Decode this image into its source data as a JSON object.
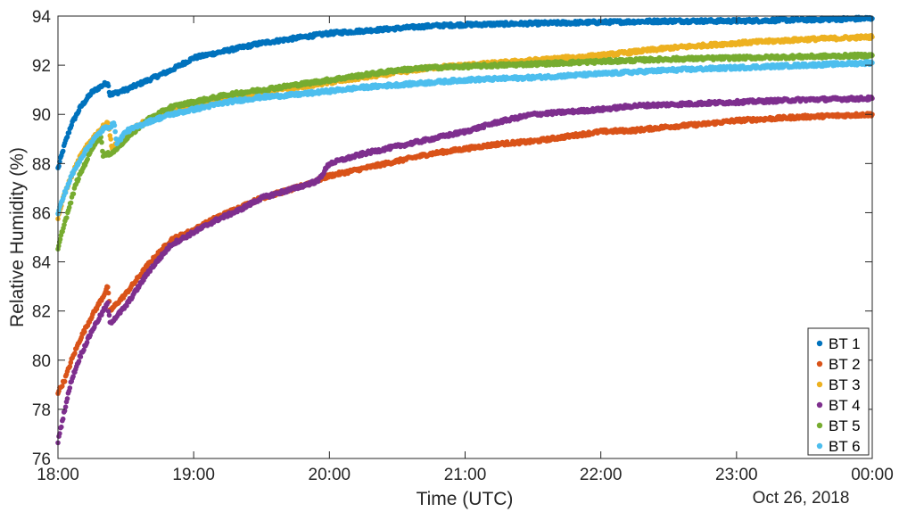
{
  "chart_data": {
    "type": "scatter",
    "xlabel": "Time (UTC)",
    "ylabel": "Relative Humidity (%)",
    "date_label": "Oct 26, 2018",
    "x_tick_labels": [
      "18:00",
      "19:00",
      "20:00",
      "21:00",
      "22:00",
      "23:00",
      "00:00"
    ],
    "y_tick_labels": [
      "76",
      "78",
      "80",
      "82",
      "84",
      "86",
      "88",
      "90",
      "92",
      "94"
    ],
    "xlim": [
      "18:00",
      "00:00"
    ],
    "ylim": [
      76,
      94
    ],
    "grid": false,
    "legend_position": "bottom-right",
    "series": [
      {
        "name": "BT 1",
        "color": "#0072BD",
        "points": [
          [
            "18:00",
            87.8
          ],
          [
            "18:03",
            88.8
          ],
          [
            "18:06",
            89.6
          ],
          [
            "18:10",
            90.3
          ],
          [
            "18:15",
            90.9
          ],
          [
            "18:20",
            91.2
          ],
          [
            "18:22",
            91.3
          ],
          [
            "18:23",
            90.8
          ],
          [
            "18:30",
            91.0
          ],
          [
            "18:40",
            91.4
          ],
          [
            "18:50",
            91.8
          ],
          [
            "19:00",
            92.3
          ],
          [
            "19:15",
            92.6
          ],
          [
            "19:30",
            92.9
          ],
          [
            "19:45",
            93.1
          ],
          [
            "20:00",
            93.3
          ],
          [
            "20:15",
            93.4
          ],
          [
            "20:30",
            93.5
          ],
          [
            "20:45",
            93.6
          ],
          [
            "21:00",
            93.65
          ],
          [
            "21:30",
            93.7
          ],
          [
            "22:00",
            93.75
          ],
          [
            "22:30",
            93.8
          ],
          [
            "23:00",
            93.8
          ],
          [
            "23:30",
            93.85
          ],
          [
            "00:00",
            93.9
          ]
        ]
      },
      {
        "name": "BT 2",
        "color": "#D95319",
        "points": [
          [
            "18:00",
            78.7
          ],
          [
            "18:03",
            79.2
          ],
          [
            "18:06",
            80.0
          ],
          [
            "18:10",
            80.9
          ],
          [
            "18:15",
            81.8
          ],
          [
            "18:20",
            82.6
          ],
          [
            "18:22",
            83.0
          ],
          [
            "18:23",
            82.0
          ],
          [
            "18:30",
            82.7
          ],
          [
            "18:40",
            83.9
          ],
          [
            "18:50",
            84.9
          ],
          [
            "19:00",
            85.3
          ],
          [
            "19:10",
            85.8
          ],
          [
            "19:20",
            86.2
          ],
          [
            "19:30",
            86.6
          ],
          [
            "19:45",
            87.0
          ],
          [
            "20:00",
            87.5
          ],
          [
            "20:15",
            87.8
          ],
          [
            "20:30",
            88.1
          ],
          [
            "20:45",
            88.4
          ],
          [
            "21:00",
            88.6
          ],
          [
            "21:15",
            88.8
          ],
          [
            "21:30",
            88.9
          ],
          [
            "21:45",
            89.1
          ],
          [
            "22:00",
            89.3
          ],
          [
            "22:15",
            89.35
          ],
          [
            "22:30",
            89.5
          ],
          [
            "22:45",
            89.6
          ],
          [
            "23:00",
            89.75
          ],
          [
            "23:30",
            89.9
          ],
          [
            "00:00",
            90.0
          ]
        ]
      },
      {
        "name": "BT 3",
        "color": "#EDB120",
        "points": [
          [
            "18:00",
            85.8
          ],
          [
            "18:03",
            86.8
          ],
          [
            "18:06",
            87.5
          ],
          [
            "18:10",
            88.3
          ],
          [
            "18:15",
            89.0
          ],
          [
            "18:20",
            89.5
          ],
          [
            "18:22",
            89.7
          ],
          [
            "18:24",
            88.6
          ],
          [
            "18:30",
            89.2
          ],
          [
            "18:40",
            89.8
          ],
          [
            "18:50",
            90.1
          ],
          [
            "19:00",
            90.3
          ],
          [
            "19:15",
            90.6
          ],
          [
            "19:30",
            90.9
          ],
          [
            "19:45",
            91.1
          ],
          [
            "20:00",
            91.3
          ],
          [
            "20:15",
            91.5
          ],
          [
            "20:30",
            91.7
          ],
          [
            "20:45",
            91.9
          ],
          [
            "21:00",
            92.0
          ],
          [
            "21:30",
            92.2
          ],
          [
            "22:00",
            92.4
          ],
          [
            "22:30",
            92.7
          ],
          [
            "23:00",
            92.9
          ],
          [
            "23:30",
            93.05
          ],
          [
            "00:00",
            93.15
          ]
        ]
      },
      {
        "name": "BT 4",
        "color": "#7E2F8E",
        "points": [
          [
            "18:00",
            76.7
          ],
          [
            "18:03",
            78.0
          ],
          [
            "18:06",
            79.2
          ],
          [
            "18:10",
            80.2
          ],
          [
            "18:15",
            81.2
          ],
          [
            "18:20",
            82.0
          ],
          [
            "18:22",
            82.3
          ],
          [
            "18:23",
            81.5
          ],
          [
            "18:30",
            82.2
          ],
          [
            "18:40",
            83.6
          ],
          [
            "18:50",
            84.7
          ],
          [
            "19:00",
            85.2
          ],
          [
            "19:10",
            85.7
          ],
          [
            "19:20",
            86.1
          ],
          [
            "19:30",
            86.6
          ],
          [
            "19:45",
            87.0
          ],
          [
            "19:55",
            87.3
          ],
          [
            "20:00",
            88.0
          ],
          [
            "20:15",
            88.4
          ],
          [
            "20:30",
            88.7
          ],
          [
            "20:45",
            89.0
          ],
          [
            "21:00",
            89.3
          ],
          [
            "21:15",
            89.7
          ],
          [
            "21:30",
            90.0
          ],
          [
            "21:45",
            90.1
          ],
          [
            "22:00",
            90.2
          ],
          [
            "22:15",
            90.35
          ],
          [
            "22:30",
            90.4
          ],
          [
            "22:45",
            90.45
          ],
          [
            "23:00",
            90.5
          ],
          [
            "23:30",
            90.6
          ],
          [
            "00:00",
            90.65
          ]
        ]
      },
      {
        "name": "BT 5",
        "color": "#77AC30",
        "points": [
          [
            "18:00",
            84.5
          ],
          [
            "18:02",
            85.3
          ],
          [
            "18:05",
            86.2
          ],
          [
            "18:08",
            87.2
          ],
          [
            "18:12",
            88.0
          ],
          [
            "18:16",
            88.8
          ],
          [
            "18:19",
            89.1
          ],
          [
            "18:20",
            88.3
          ],
          [
            "18:25",
            88.5
          ],
          [
            "18:30",
            89.0
          ],
          [
            "18:40",
            89.8
          ],
          [
            "18:50",
            90.3
          ],
          [
            "19:00",
            90.5
          ],
          [
            "19:15",
            90.8
          ],
          [
            "19:30",
            91.0
          ],
          [
            "19:45",
            91.2
          ],
          [
            "20:00",
            91.4
          ],
          [
            "20:15",
            91.6
          ],
          [
            "20:30",
            91.8
          ],
          [
            "20:45",
            91.9
          ],
          [
            "21:00",
            91.95
          ],
          [
            "21:30",
            92.05
          ],
          [
            "22:00",
            92.15
          ],
          [
            "22:30",
            92.25
          ],
          [
            "23:00",
            92.3
          ],
          [
            "23:30",
            92.35
          ],
          [
            "00:00",
            92.4
          ]
        ]
      },
      {
        "name": "BT 6",
        "color": "#4DBEEE",
        "points": [
          [
            "18:00",
            86.0
          ],
          [
            "18:03",
            86.8
          ],
          [
            "18:06",
            87.5
          ],
          [
            "18:10",
            88.2
          ],
          [
            "18:15",
            88.9
          ],
          [
            "18:20",
            89.4
          ],
          [
            "18:25",
            89.6
          ],
          [
            "18:26",
            88.8
          ],
          [
            "18:30",
            89.3
          ],
          [
            "18:40",
            89.7
          ],
          [
            "18:50",
            90.0
          ],
          [
            "19:00",
            90.2
          ],
          [
            "19:15",
            90.5
          ],
          [
            "19:30",
            90.7
          ],
          [
            "19:45",
            90.8
          ],
          [
            "20:00",
            90.95
          ],
          [
            "20:15",
            91.1
          ],
          [
            "20:30",
            91.2
          ],
          [
            "20:45",
            91.3
          ],
          [
            "21:00",
            91.4
          ],
          [
            "21:30",
            91.5
          ],
          [
            "22:00",
            91.65
          ],
          [
            "22:30",
            91.8
          ],
          [
            "23:00",
            91.9
          ],
          [
            "23:30",
            92.0
          ],
          [
            "00:00",
            92.1
          ]
        ]
      }
    ]
  }
}
